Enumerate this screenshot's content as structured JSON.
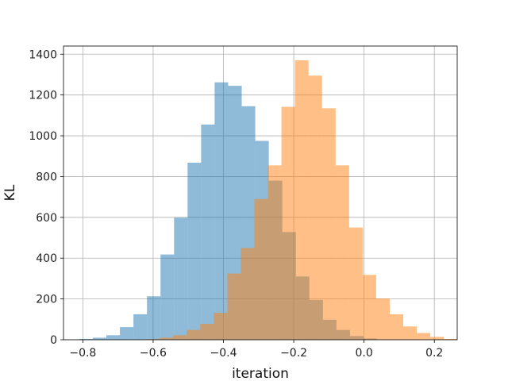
{
  "chart_data": {
    "type": "histogram",
    "title": "",
    "xlabel": "iteration",
    "ylabel": "KL",
    "xlim": [
      -0.855,
      0.265
    ],
    "ylim": [
      0,
      1440
    ],
    "grid": true,
    "xticks": [
      -0.8,
      -0.6,
      -0.4,
      -0.2,
      0.0,
      0.2
    ],
    "xtick_labels": [
      "−0.8",
      "−0.6",
      "−0.4",
      "−0.2",
      "0.0",
      "0.2"
    ],
    "yticks": [
      0,
      200,
      400,
      600,
      800,
      1000,
      1200,
      1400
    ],
    "ytick_labels": [
      "0",
      "200",
      "400",
      "600",
      "800",
      "1000",
      "1200",
      "1400"
    ],
    "series": [
      {
        "color": "#1f77b4",
        "alpha": 0.5,
        "bin_start": -0.81,
        "bin_width": 0.0385,
        "counts": [
          4,
          10,
          22,
          62,
          125,
          213,
          418,
          598,
          868,
          1055,
          1262,
          1245,
          1145,
          975,
          780,
          528,
          310,
          195,
          98,
          48,
          18,
          6
        ]
      },
      {
        "color": "#ff7f0e",
        "alpha": 0.5,
        "bin_start": -0.62,
        "bin_width": 0.0385,
        "counts": [
          3,
          10,
          22,
          48,
          78,
          132,
          325,
          450,
          690,
          855,
          1142,
          1370,
          1295,
          1135,
          855,
          550,
          318,
          202,
          125,
          65,
          33,
          14,
          4
        ]
      }
    ]
  }
}
